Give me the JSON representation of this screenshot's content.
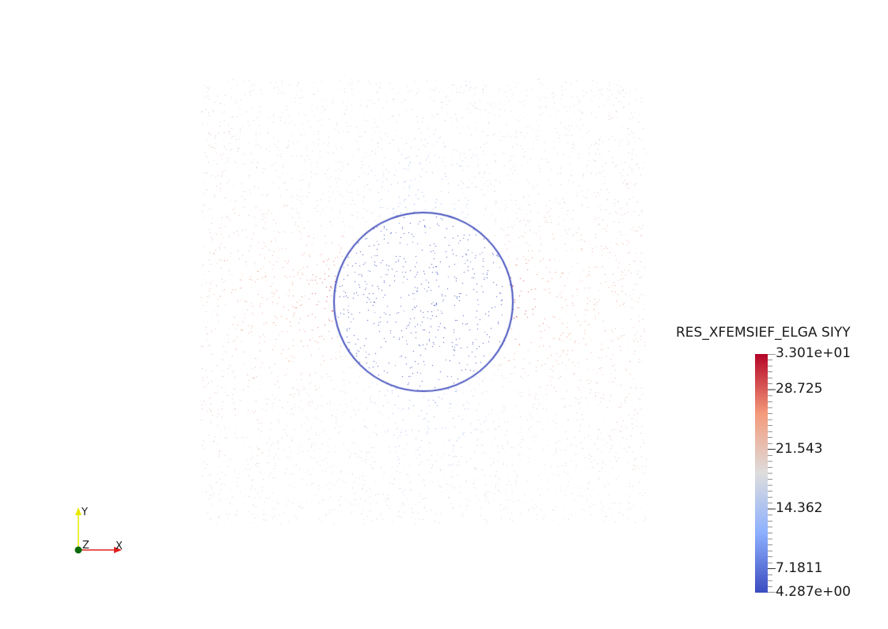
{
  "scalar_bar": {
    "title": "RES_XFEMSIEF_ELGA SIYY",
    "max_label": "3.301e+01",
    "min_label": "4.287e+00",
    "tick_labels": [
      "28.725",
      "21.543",
      "14.362",
      "7.1811"
    ],
    "range": [
      4.287,
      33.01
    ],
    "tick_values": [
      28.725,
      21.543,
      14.362,
      7.1811
    ],
    "colors": {
      "low": "#3b4cc0",
      "mid": "#dddddd",
      "high": "#b40426"
    }
  },
  "orientation_axes": {
    "x_label": "X",
    "y_label": "Y",
    "z_label": "Z",
    "x_color": "#e02020",
    "y_color": "#e8e800",
    "z_color": "#0a6a0a"
  }
}
